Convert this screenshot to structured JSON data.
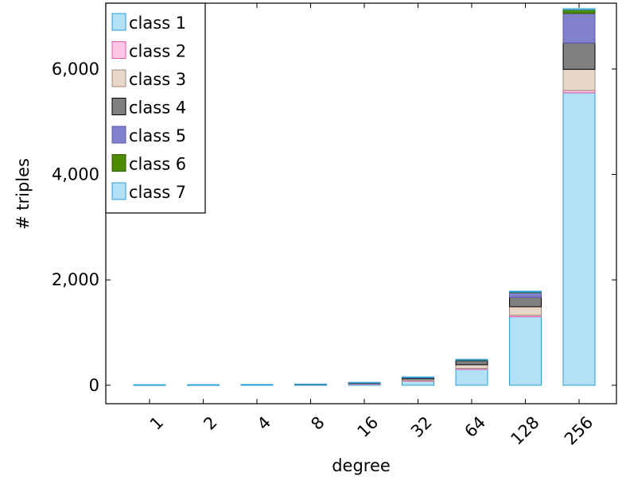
{
  "chart_data": {
    "type": "bar",
    "stacked": true,
    "title": "",
    "xlabel": "degree",
    "ylabel": "# triples",
    "categories": [
      "1",
      "2",
      "4",
      "8",
      "16",
      "32",
      "64",
      "128",
      "256"
    ],
    "ylim": [
      -350,
      7250
    ],
    "yticks": [
      0,
      2000,
      4000,
      6000
    ],
    "ytick_labels": [
      "0",
      "2,000",
      "4,000",
      "6,000"
    ],
    "grid": false,
    "legend_position": "top-left",
    "series": [
      {
        "name": "class 1",
        "fill": "#b3e0f5",
        "stroke": "#2a9fd6",
        "values": [
          1,
          1,
          1,
          2,
          5,
          8,
          12,
          16,
          20
        ]
      },
      {
        "name": "class 2",
        "fill": "#ffc7e6",
        "stroke": "#e05aa8",
        "values": [
          0,
          0,
          0,
          1,
          5,
          10,
          20,
          30,
          45
        ]
      },
      {
        "name": "class 3",
        "fill": "#e6d7c8",
        "stroke": "#a08a7a",
        "values": [
          0,
          0,
          0,
          1,
          10,
          30,
          70,
          160,
          400
        ]
      },
      {
        "name": "class 4",
        "fill": "#808080",
        "stroke": "#000000",
        "values": [
          0,
          0,
          0,
          1,
          10,
          25,
          70,
          180,
          500
        ]
      },
      {
        "name": "class 5",
        "fill": "#8080cc",
        "stroke": "#5a5aa8",
        "values": [
          0,
          0,
          0,
          0,
          0,
          5,
          15,
          90,
          560
        ]
      },
      {
        "name": "class 6",
        "fill": "#4d8c00",
        "stroke": "#2f5a00",
        "values": [
          0,
          0,
          0,
          0,
          0,
          0,
          5,
          10,
          70
        ]
      },
      {
        "name": "class 7",
        "fill": "#b3e0f5",
        "stroke": "#2a9fd6",
        "values": [
          9,
          11,
          13,
          17,
          25,
          80,
          300,
          1300,
          5550
        ]
      }
    ],
    "stack_order": [
      "class 7",
      "class 2",
      "class 3",
      "class 4",
      "class 5",
      "class 6",
      "class 1"
    ]
  }
}
